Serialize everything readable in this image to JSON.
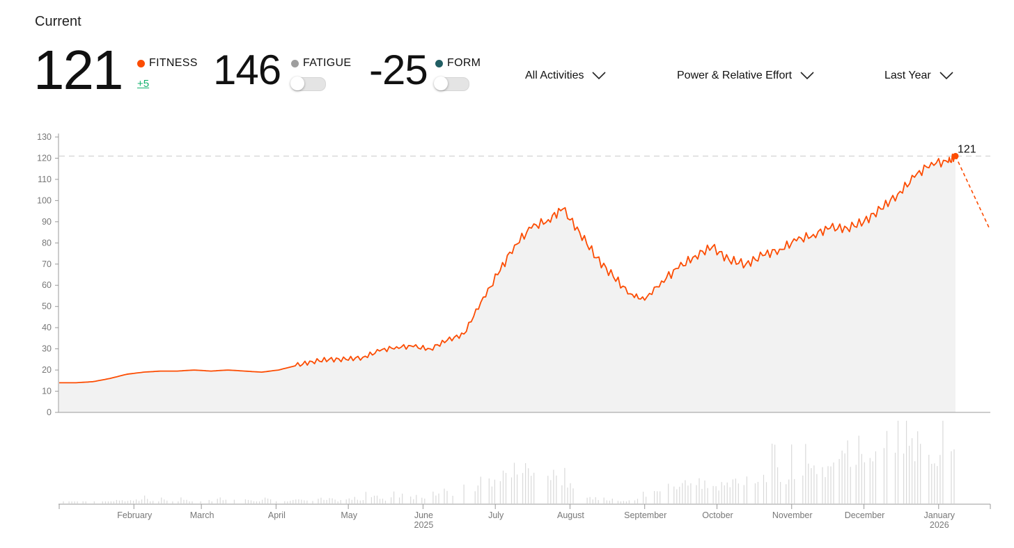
{
  "current_label": "Current",
  "fitness": {
    "value": "121",
    "label": "FITNESS",
    "delta": "+5",
    "color": "#fc4c02"
  },
  "fatigue": {
    "value": "146",
    "label": "FATIGUE",
    "color": "#9e9e9e"
  },
  "form": {
    "value": "-25",
    "label": "FORM",
    "color": "#215e63"
  },
  "filters": {
    "activity": "All Activities",
    "metric": "Power & Relative Effort",
    "range": "Last Year"
  },
  "icons": {
    "dropdown": "chevron-down-icon"
  },
  "chart_data": {
    "type": "line",
    "y_ticks": [
      "0",
      "10",
      "20",
      "30",
      "40",
      "50",
      "60",
      "70",
      "80",
      "90",
      "100",
      "110",
      "120",
      "130"
    ],
    "ylim": [
      0,
      130
    ],
    "x_ticks": [
      {
        "label": "February",
        "sub": ""
      },
      {
        "label": "March",
        "sub": ""
      },
      {
        "label": "April",
        "sub": ""
      },
      {
        "label": "May",
        "sub": ""
      },
      {
        "label": "June",
        "sub": "2025"
      },
      {
        "label": "July",
        "sub": ""
      },
      {
        "label": "August",
        "sub": ""
      },
      {
        "label": "September",
        "sub": ""
      },
      {
        "label": "October",
        "sub": ""
      },
      {
        "label": "November",
        "sub": ""
      },
      {
        "label": "December",
        "sub": ""
      },
      {
        "label": "January",
        "sub": "2026"
      }
    ],
    "annotation": "121",
    "reference_value": 121,
    "fitness_series": {
      "color": "#fc4c02",
      "points": [
        [
          "2025-01-01",
          14
        ],
        [
          "2025-01-08",
          14
        ],
        [
          "2025-01-15",
          14.5
        ],
        [
          "2025-01-22",
          16
        ],
        [
          "2025-01-29",
          18
        ],
        [
          "2025-02-05",
          19
        ],
        [
          "2025-02-12",
          19.5
        ],
        [
          "2025-02-19",
          19.5
        ],
        [
          "2025-02-26",
          20
        ],
        [
          "2025-03-05",
          19.5
        ],
        [
          "2025-03-12",
          20
        ],
        [
          "2025-03-19",
          19.5
        ],
        [
          "2025-03-26",
          19
        ],
        [
          "2025-04-02",
          20
        ],
        [
          "2025-04-09",
          22
        ],
        [
          "2025-04-16",
          24
        ],
        [
          "2025-04-23",
          25
        ],
        [
          "2025-04-30",
          25
        ],
        [
          "2025-05-07",
          26
        ],
        [
          "2025-05-14",
          29
        ],
        [
          "2025-05-21",
          31
        ],
        [
          "2025-05-28",
          31
        ],
        [
          "2025-06-04",
          30
        ],
        [
          "2025-06-11",
          34
        ],
        [
          "2025-06-18",
          37
        ],
        [
          "2025-06-25",
          52
        ],
        [
          "2025-07-02",
          65
        ],
        [
          "2025-07-09",
          79
        ],
        [
          "2025-07-16",
          87
        ],
        [
          "2025-07-23",
          91
        ],
        [
          "2025-07-29",
          96
        ],
        [
          "2025-08-05",
          85
        ],
        [
          "2025-08-12",
          73
        ],
        [
          "2025-08-19",
          64
        ],
        [
          "2025-08-26",
          56
        ],
        [
          "2025-09-01",
          53
        ],
        [
          "2025-09-08",
          62
        ],
        [
          "2025-09-15",
          68
        ],
        [
          "2025-09-22",
          74
        ],
        [
          "2025-09-29",
          78
        ],
        [
          "2025-10-06",
          72
        ],
        [
          "2025-10-13",
          70
        ],
        [
          "2025-10-20",
          74
        ],
        [
          "2025-10-27",
          77
        ],
        [
          "2025-11-03",
          81
        ],
        [
          "2025-11-10",
          84
        ],
        [
          "2025-11-17",
          87
        ],
        [
          "2025-11-24",
          87
        ],
        [
          "2025-12-01",
          90
        ],
        [
          "2025-12-08",
          96
        ],
        [
          "2025-12-15",
          103
        ],
        [
          "2025-12-22",
          111
        ],
        [
          "2025-12-29",
          118
        ],
        [
          "2026-01-05",
          118
        ],
        [
          "2026-01-08",
          121
        ]
      ],
      "projection": [
        [
          "2026-01-08",
          121
        ],
        [
          "2026-01-22",
          87
        ]
      ]
    },
    "daily_effort": [
      1,
      2,
      1,
      2,
      2,
      1,
      2,
      1,
      2,
      3,
      2,
      3,
      2,
      4,
      3,
      2,
      3,
      3,
      2,
      5,
      3,
      2,
      3,
      4,
      2,
      5,
      3,
      3,
      2,
      4,
      3,
      2,
      3,
      4,
      2,
      3,
      2,
      3,
      4,
      3,
      2,
      5,
      3,
      4,
      2,
      3,
      4,
      5,
      3,
      6,
      4,
      5,
      3,
      6,
      5,
      4,
      6,
      7,
      5,
      6,
      8,
      12,
      10,
      9,
      14,
      18,
      15,
      20,
      22,
      18,
      25,
      28,
      30,
      32,
      35,
      30,
      28,
      25,
      30,
      27,
      24,
      18,
      12,
      8,
      6,
      5,
      4,
      3,
      4,
      3,
      2,
      3,
      4,
      6,
      8,
      10,
      12,
      15,
      16,
      18,
      20,
      22,
      20,
      18,
      17,
      16,
      18,
      20,
      22,
      24,
      25,
      23,
      26,
      28,
      30,
      28,
      26,
      30,
      32,
      30,
      34,
      36,
      38,
      40,
      42,
      45,
      48,
      50,
      52,
      55,
      58,
      62,
      65,
      68,
      72,
      70,
      66,
      60,
      55,
      50,
      48,
      46,
      45,
      40
    ]
  }
}
